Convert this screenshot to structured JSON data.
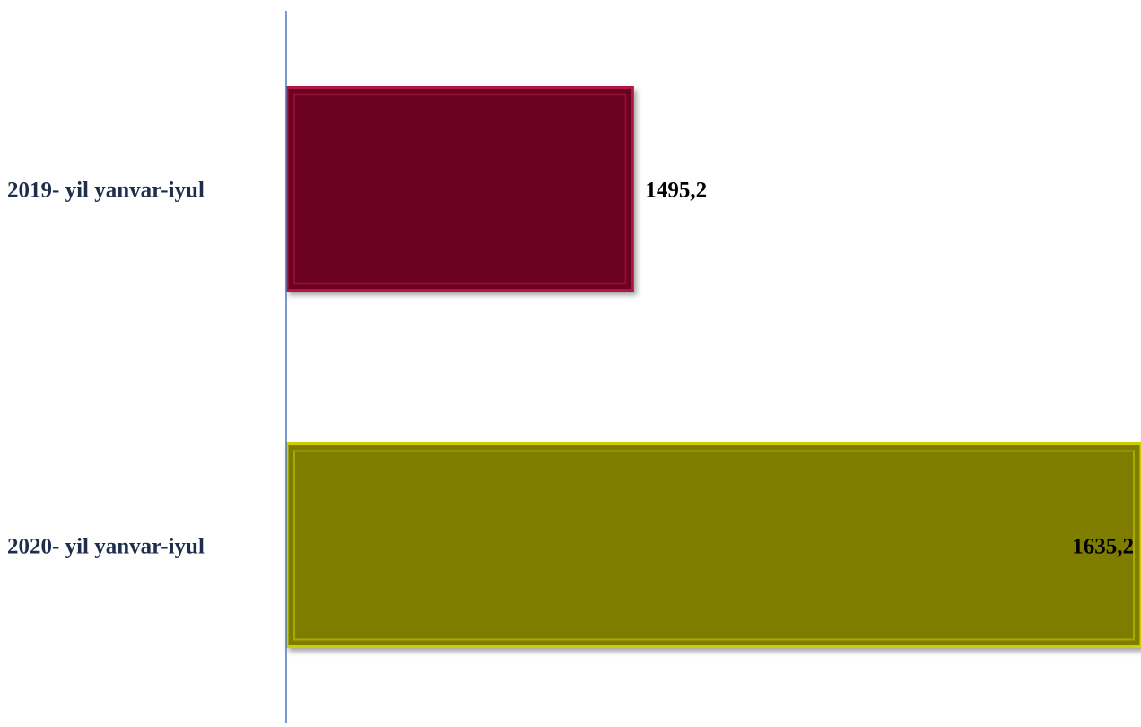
{
  "chart_data": {
    "type": "bar",
    "orientation": "horizontal",
    "categories": [
      "2019- yil yanvar-iyul",
      "2020- yil yanvar-iyul"
    ],
    "values": [
      1495.2,
      1635.2
    ],
    "value_labels": [
      "1495,2",
      "1635,2"
    ],
    "title": "",
    "xlabel": "",
    "ylabel": "",
    "xlim": [
      1400,
      1635.2
    ],
    "grid": false,
    "legend": "none",
    "colors": [
      "#6b0022",
      "#7f7d00"
    ],
    "edge_colors": [
      "#b3123f",
      "#cfcc00"
    ],
    "axis_color": "#4a77c0"
  }
}
